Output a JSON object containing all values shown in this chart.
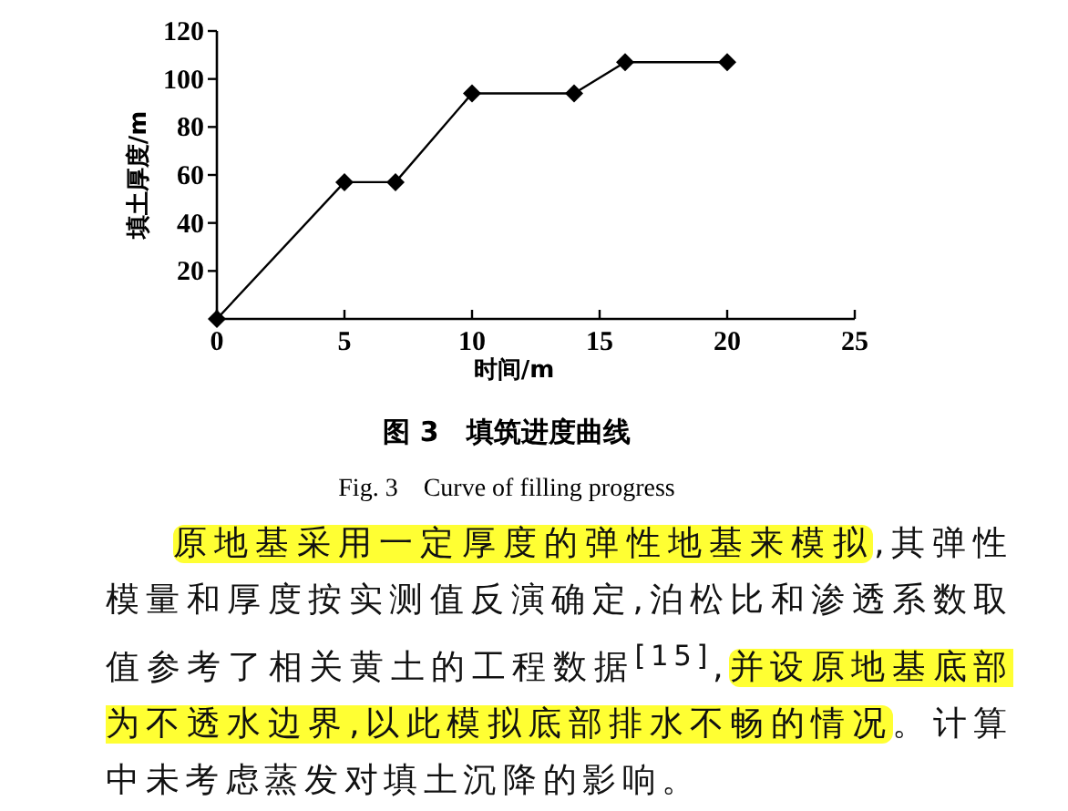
{
  "chart_data": {
    "type": "line",
    "title": "图 3　填筑进度曲线",
    "subtitle": "Fig. 3　Curve of filling progress",
    "xlabel": "时间/m",
    "ylabel": "填土厚度/m",
    "x": [
      0,
      5,
      7,
      10,
      14,
      16,
      20
    ],
    "series": [
      {
        "color": "#000000",
        "values": [
          0,
          57,
          57,
          94,
          94,
          107,
          107
        ]
      }
    ],
    "xlim": [
      0,
      25
    ],
    "xticks": [
      0,
      5,
      10,
      15,
      20,
      25
    ],
    "ylim": [
      0,
      120
    ],
    "yticks": [
      20,
      40,
      60,
      80,
      100,
      120
    ],
    "marker": "diamond",
    "line_style": "solid",
    "grid": false,
    "annotations": [
      "原地基采用一定厚度的弹性地基来模拟",
      ",其弹性模量和厚度按实测值反演确定,泊松比和渗透系数取值参考了相关黄土的工程数据$^{[15]}$,",
      "并设原地基底部为不透水边界,以此模拟底部排水不畅的情况",
      "。计算中未考虑蒸发对填土沉降的影响。"
    ]
  }
}
